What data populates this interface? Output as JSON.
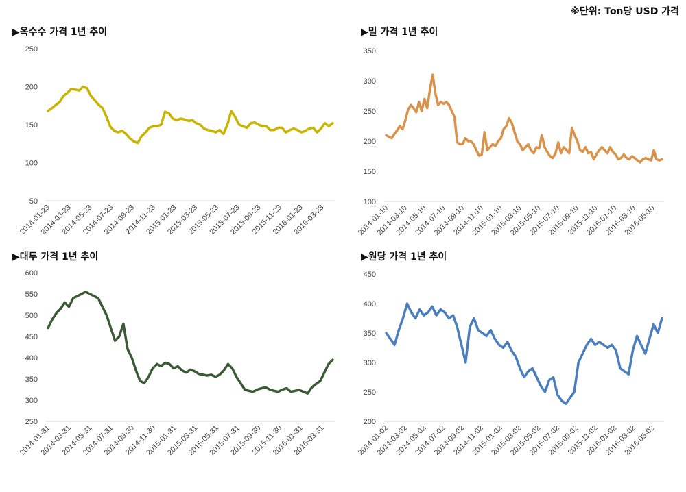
{
  "unit_note": "※단위: Ton당 USD 가격",
  "chart_data": [
    {
      "type": "line",
      "title": "▶옥수수 가격 1년 추이",
      "color": "#c8b400",
      "ylim": [
        50,
        250
      ],
      "yticks": [
        "50",
        "100",
        "150",
        "200",
        "250"
      ],
      "xticks": [
        "2014-01-23",
        "2014-03-23",
        "2014-05-23",
        "2014-07-23",
        "2014-09-23",
        "2014-11-23",
        "2015-01-23",
        "2015-03-23",
        "2015-05-23",
        "2015-07-23",
        "2015-09-23",
        "2015-11-23",
        "2016-01-23",
        "2016-03-23"
      ],
      "values": [
        168,
        172,
        176,
        180,
        188,
        192,
        197,
        196,
        195,
        200,
        198,
        188,
        182,
        176,
        172,
        160,
        147,
        142,
        140,
        142,
        138,
        132,
        128,
        126,
        135,
        140,
        146,
        148,
        148,
        150,
        167,
        165,
        158,
        156,
        158,
        157,
        155,
        156,
        152,
        150,
        145,
        143,
        142,
        140,
        143,
        138,
        150,
        168,
        160,
        150,
        148,
        146,
        152,
        153,
        150,
        148,
        148,
        143,
        143,
        146,
        146,
        140,
        143,
        145,
        143,
        140,
        142,
        145,
        146,
        140,
        145,
        152,
        148,
        152
      ]
    },
    {
      "type": "line",
      "title": "▶밀 가격 1년 추이",
      "color": "#d8924a",
      "ylim": [
        100,
        350
      ],
      "yticks": [
        "100",
        "150",
        "200",
        "250",
        "300",
        "350"
      ],
      "xticks": [
        "2014-01-10",
        "2014-03-10",
        "2014-05-10",
        "2014-07-10",
        "2014-09-10",
        "2014-11-10",
        "2015-01-10",
        "2015-03-10",
        "2015-05-10",
        "2015-07-10",
        "2015-09-10",
        "2015-11-10",
        "2016-01-10",
        "2016-03-10",
        "2016-05-10"
      ],
      "values": [
        210,
        207,
        205,
        212,
        218,
        225,
        220,
        235,
        252,
        260,
        255,
        248,
        265,
        250,
        270,
        255,
        285,
        310,
        280,
        260,
        265,
        262,
        265,
        260,
        250,
        240,
        198,
        195,
        195,
        205,
        200,
        200,
        195,
        185,
        176,
        178,
        215,
        185,
        190,
        195,
        192,
        200,
        205,
        220,
        225,
        238,
        230,
        215,
        200,
        195,
        185,
        190,
        195,
        185,
        180,
        190,
        188,
        210,
        190,
        182,
        175,
        172,
        180,
        198,
        180,
        190,
        185,
        180,
        222,
        210,
        200,
        185,
        182,
        190,
        180,
        182,
        170,
        178,
        185,
        190,
        185,
        180,
        190,
        182,
        178,
        170,
        172,
        178,
        172,
        170,
        175,
        172,
        168,
        165,
        170,
        172,
        170,
        168,
        185,
        170,
        168,
        170
      ]
    },
    {
      "type": "line",
      "title": "▶대두 가격 1년 추이",
      "color": "#3b5a35",
      "ylim": [
        250,
        600
      ],
      "yticks": [
        "250",
        "300",
        "350",
        "400",
        "450",
        "500",
        "550",
        "600"
      ],
      "xticks": [
        "2014-01-31",
        "2014-03-31",
        "2014-05-31",
        "2014-07-31",
        "2014-09-30",
        "2014-11-30",
        "2015-01-31",
        "2015-03-31",
        "2015-05-31",
        "2015-07-31",
        "2015-09-30",
        "2015-11-30",
        "2016-01-31",
        "2016-03-31"
      ],
      "values": [
        470,
        490,
        505,
        515,
        530,
        520,
        540,
        545,
        550,
        555,
        550,
        545,
        540,
        520,
        500,
        470,
        440,
        450,
        480,
        420,
        400,
        370,
        345,
        340,
        355,
        375,
        385,
        380,
        388,
        385,
        375,
        380,
        370,
        365,
        372,
        368,
        362,
        360,
        358,
        360,
        355,
        360,
        370,
        385,
        375,
        355,
        340,
        325,
        322,
        320,
        325,
        328,
        330,
        325,
        322,
        320,
        325,
        328,
        320,
        322,
        324,
        320,
        316,
        330,
        338,
        345,
        365,
        385,
        395
      ]
    },
    {
      "type": "line",
      "title": "▶원당 가격 1년 추이",
      "color": "#4a7ebf",
      "ylim": [
        200,
        450
      ],
      "yticks": [
        "200",
        "250",
        "300",
        "350",
        "400",
        "450"
      ],
      "xticks": [
        "2014-01-02",
        "2014-03-02",
        "2014-05-02",
        "2014-07-02",
        "2014-09-02",
        "2014-11-02",
        "2015-01-02",
        "2015-03-02",
        "2015-05-02",
        "2015-07-02",
        "2015-09-02",
        "2015-11-02",
        "2016-01-02",
        "2016-03-02",
        "2016-05-02"
      ],
      "values": [
        350,
        340,
        330,
        355,
        375,
        400,
        385,
        375,
        390,
        380,
        385,
        395,
        380,
        390,
        385,
        375,
        380,
        360,
        330,
        300,
        360,
        375,
        355,
        350,
        345,
        355,
        340,
        330,
        325,
        335,
        320,
        310,
        290,
        275,
        285,
        290,
        275,
        260,
        250,
        270,
        275,
        245,
        235,
        230,
        240,
        250,
        300,
        315,
        330,
        340,
        330,
        335,
        330,
        325,
        330,
        320,
        290,
        285,
        280,
        320,
        345,
        330,
        315,
        340,
        365,
        350,
        375
      ]
    }
  ]
}
